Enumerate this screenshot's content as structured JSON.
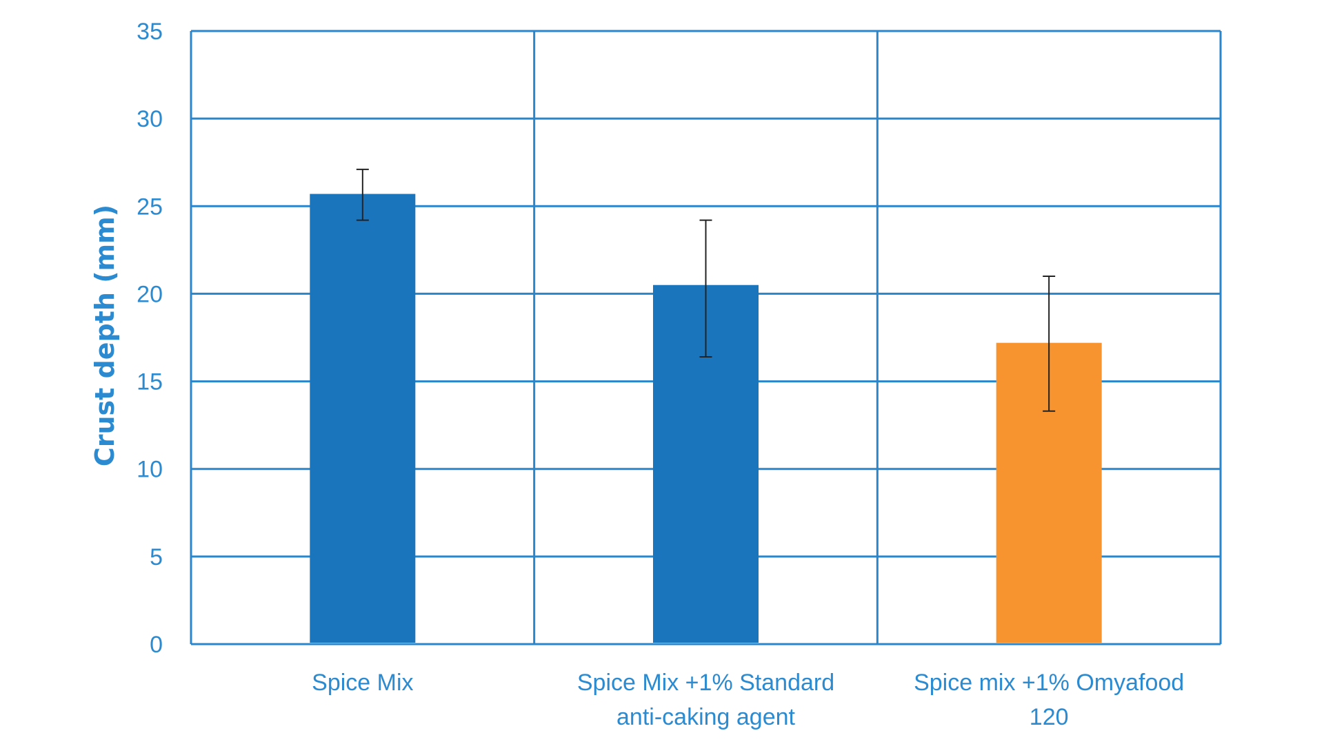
{
  "chart_data": {
    "type": "bar",
    "title": "",
    "xlabel": "",
    "ylabel": "Crust depth (mm)",
    "ylim": [
      0,
      35
    ],
    "yticks": [
      0,
      5,
      10,
      15,
      20,
      25,
      30,
      35
    ],
    "grid": true,
    "categories": [
      [
        "Spice Mix"
      ],
      [
        "Spice Mix +1% Standard",
        "anti-caking agent"
      ],
      [
        "Spice mix +1% Omyafood",
        "120"
      ]
    ],
    "values": [
      25.7,
      20.5,
      17.2
    ],
    "error_low": [
      24.2,
      16.4,
      13.3
    ],
    "error_high": [
      27.1,
      24.2,
      21.0
    ],
    "bar_colors": [
      "#1b75bc",
      "#1b75bc",
      "#f7942f"
    ],
    "grid_color": "#2a86cc",
    "text_color": "#2b8ad0",
    "error_bar_color": "#222222"
  }
}
